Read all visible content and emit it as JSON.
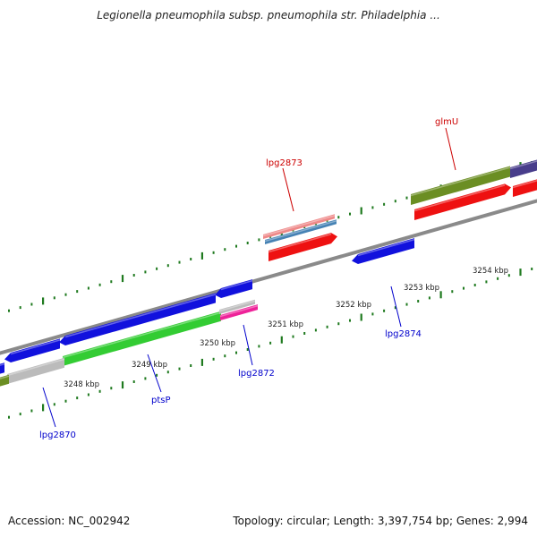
{
  "title": "Legionella pneumophila subsp. pneumophila str. Philadelphia ...",
  "footer": {
    "accession": "Accession: NC_002942",
    "summary": "Topology: circular; Length: 3,397,754 bp; Genes: 2,994"
  },
  "colors": {
    "backbone": "#8a8a8a",
    "tick": "#1f7a1f",
    "label_blue": "#0000cc",
    "label_red": "#cc0000",
    "scale_text": "#222222"
  },
  "scale_labels": [
    "3248 kbp",
    "3249 kbp",
    "3250 kbp",
    "3251 kbp",
    "3252 kbp",
    "3253 kbp",
    "3254 kbp"
  ],
  "gene_labels": [
    {
      "name": "lpg2870",
      "color": "#0000cc"
    },
    {
      "name": "ptsP",
      "color": "#0000cc"
    },
    {
      "name": "lpg2872",
      "color": "#0000cc"
    },
    {
      "name": "lpg2873",
      "color": "#cc0000"
    },
    {
      "name": "lpg2874",
      "color": "#0000cc"
    },
    {
      "name": "glmU",
      "color": "#cc0000"
    }
  ],
  "features": [
    {
      "name": "forward-gene-olive-glmU",
      "color": "#6b8e23",
      "strand": "forward"
    },
    {
      "name": "forward-gene-purple",
      "color": "#483d8b",
      "strand": "forward"
    },
    {
      "name": "forward-gene-red-glmU",
      "color": "#ee1111",
      "strand": "forward"
    },
    {
      "name": "forward-gene-red-right",
      "color": "#ee1111",
      "strand": "forward"
    },
    {
      "name": "forward-gene-pink-lpg2873",
      "color": "#ee8888",
      "strand": "forward"
    },
    {
      "name": "forward-gene-steelblue-lpg2873",
      "color": "#4682b4",
      "strand": "forward"
    },
    {
      "name": "forward-gene-red-lpg2873",
      "color": "#ee1111",
      "strand": "forward"
    },
    {
      "name": "reverse-gene-blue-lpg2874",
      "color": "#1111dd",
      "strand": "reverse"
    },
    {
      "name": "reverse-gene-blue-lpg2872",
      "color": "#1111dd",
      "strand": "reverse"
    },
    {
      "name": "reverse-gene-blue-ptsP",
      "color": "#1111dd",
      "strand": "reverse"
    },
    {
      "name": "reverse-gene-blue-lpg2870",
      "color": "#1111dd",
      "strand": "reverse"
    },
    {
      "name": "reverse-gene-blue-left",
      "color": "#1111dd",
      "strand": "reverse"
    },
    {
      "name": "gene-green-ptsP",
      "color": "#33cc33",
      "strand": "reverse"
    },
    {
      "name": "gene-gray-ptsP",
      "color": "#bbbbbb",
      "strand": "reverse"
    },
    {
      "name": "gene-gray-lpg2872",
      "color": "#bbbbbb",
      "strand": "reverse"
    },
    {
      "name": "gene-magenta-lpg2872",
      "color": "#ee2299",
      "strand": "reverse"
    },
    {
      "name": "gene-olive-left",
      "color": "#6b8e23",
      "strand": "reverse"
    }
  ]
}
